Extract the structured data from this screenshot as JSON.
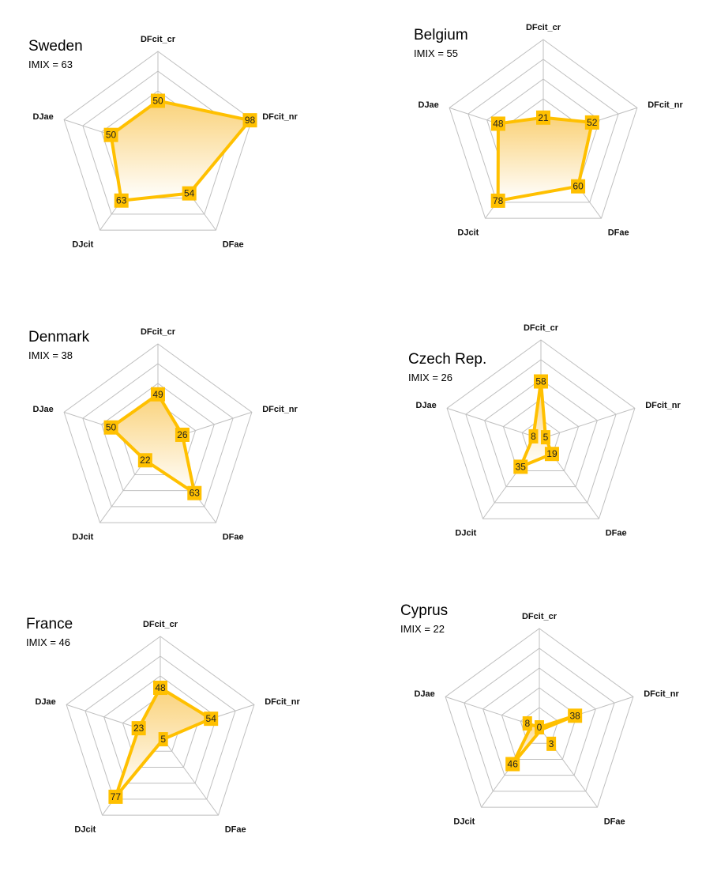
{
  "chart_data": [
    {
      "type": "radar",
      "title": "Sweden",
      "subtitle": "IMIX = 63",
      "axes": [
        "DFcit_cr",
        "DFcit_nr",
        "DFae",
        "DJcit",
        "DJae"
      ],
      "values": [
        50,
        98,
        54,
        63,
        50
      ],
      "rlim": [
        0,
        100
      ],
      "grid": true
    },
    {
      "type": "radar",
      "title": "Belgium",
      "subtitle": "IMIX = 55",
      "axes": [
        "DFcit_cr",
        "DFcit_nr",
        "DFae",
        "DJcit",
        "DJae"
      ],
      "values": [
        21,
        52,
        60,
        78,
        48
      ],
      "rlim": [
        0,
        100
      ],
      "grid": true
    },
    {
      "type": "radar",
      "title": "Denmark",
      "subtitle": "IMIX = 38",
      "axes": [
        "DFcit_cr",
        "DFcit_nr",
        "DFae",
        "DJcit",
        "DJae"
      ],
      "values": [
        49,
        26,
        63,
        22,
        50
      ],
      "rlim": [
        0,
        100
      ],
      "grid": true
    },
    {
      "type": "radar",
      "title": "Czech Rep.",
      "subtitle": "IMIX = 26",
      "axes": [
        "DFcit_cr",
        "DFcit_nr",
        "DFae",
        "DJcit",
        "DJae"
      ],
      "values": [
        58,
        5,
        19,
        35,
        8
      ],
      "rlim": [
        0,
        100
      ],
      "grid": true
    },
    {
      "type": "radar",
      "title": "France",
      "subtitle": "IMIX = 46",
      "axes": [
        "DFcit_cr",
        "DFcit_nr",
        "DFae",
        "DJcit",
        "DJae"
      ],
      "values": [
        48,
        54,
        5,
        77,
        23
      ],
      "rlim": [
        0,
        100
      ],
      "grid": true
    },
    {
      "type": "radar",
      "title": "Cyprus",
      "subtitle": "IMIX = 22",
      "axes": [
        "DFcit_cr",
        "DFcit_nr",
        "DFae",
        "DJcit",
        "DJae"
      ],
      "values": [
        0,
        38,
        3,
        46,
        8
      ],
      "rlim": [
        0,
        100
      ],
      "grid": true
    }
  ],
  "colors": {
    "line": "#FFC000",
    "fill_top": "#FAD27A",
    "fill_bottom": "#FFFFFF",
    "grid": "#BFBFBF",
    "label_bg": "#FFC000"
  }
}
